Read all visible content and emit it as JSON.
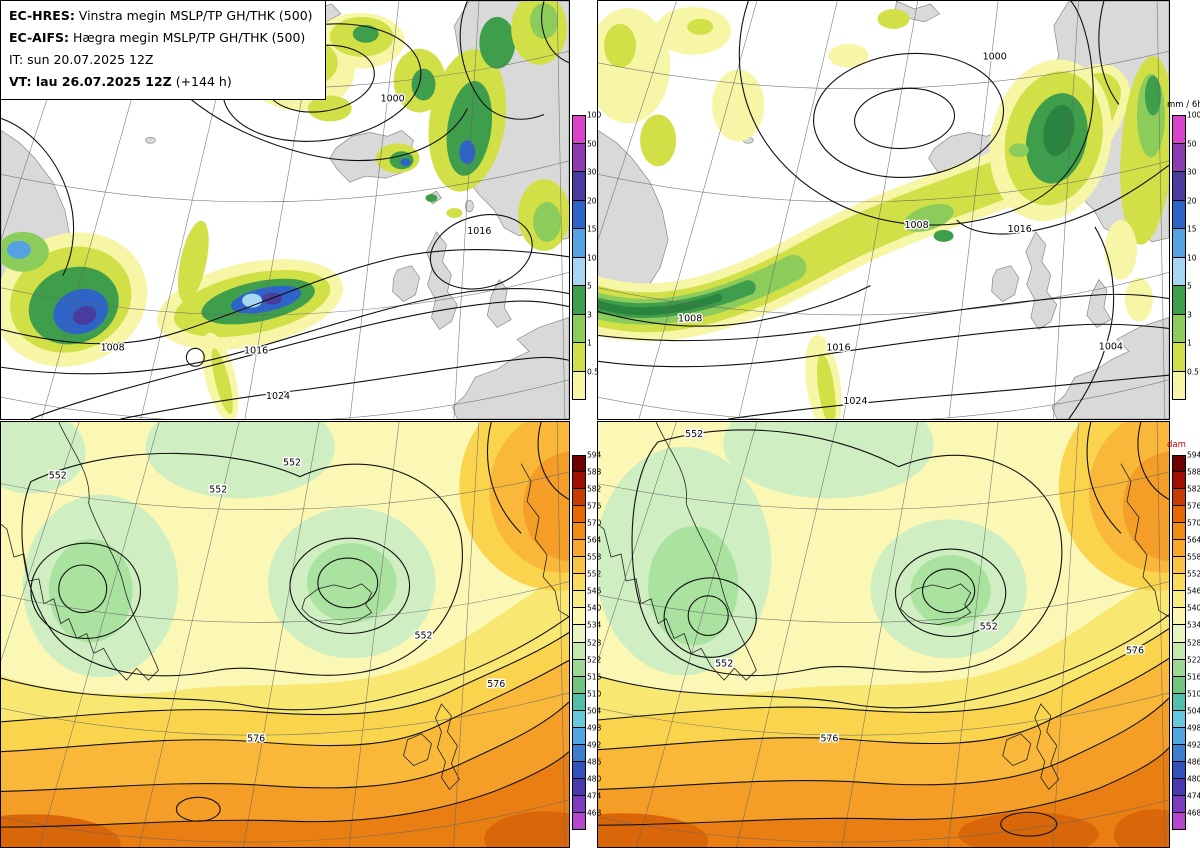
{
  "info_box": {
    "model_left_label": "EC-HRES:",
    "model_left_text": " Vinstra megin MSLP/TP GH/THK (500)",
    "model_right_label": "EC-AIFS:",
    "model_right_text": " Hægra megin MSLP/TP GH/THK (500)",
    "init_time": "IT: sun 20.07.2025 12Z",
    "valid_time": "VT: lau 26.07.2025 12Z",
    "valid_offset": " (+144 h)"
  },
  "colorbars": {
    "precip": {
      "unit": "mm / 6h",
      "levels": [
        "100",
        "50",
        "30",
        "20",
        "15",
        "10",
        "5",
        "3",
        "1",
        "0.5"
      ],
      "colors": [
        "#d944c8",
        "#8c3cb0",
        "#4a3c9e",
        "#2e63c8",
        "#54a2e2",
        "#a6d6f2",
        "#3f9e4b",
        "#8ccc5a",
        "#d2e048",
        "#f6f6a6"
      ]
    },
    "height": {
      "unit": "dam",
      "unit_color": "#c00000",
      "levels": [
        "594",
        "588",
        "582",
        "576",
        "570",
        "564",
        "558",
        "552",
        "546",
        "540",
        "534",
        "528",
        "522",
        "516",
        "510",
        "504",
        "498",
        "492",
        "486",
        "480",
        "474",
        "468"
      ],
      "colors": [
        "#6f0000",
        "#a00f00",
        "#c83c00",
        "#e46a00",
        "#f18c15",
        "#f8a82b",
        "#fbc343",
        "#f9dc5c",
        "#f9ec85",
        "#fbf6b0",
        "#e8f4c0",
        "#c5e8ad",
        "#9cd894",
        "#70c47e",
        "#52c0a8",
        "#66c8dc",
        "#4fa6e0",
        "#3b7ecf",
        "#3353bc",
        "#4a3ab0",
        "#7c3cc0",
        "#b646cc"
      ]
    }
  },
  "panels": {
    "top_left": {
      "contour_labels": [
        "1000",
        "1016",
        "1008",
        "1016",
        "1024"
      ]
    },
    "top_right": {
      "contour_labels": [
        "1000",
        "1008",
        "1016",
        "1008",
        "1016",
        "1024",
        "1004"
      ]
    },
    "bottom_left": {
      "contour_labels": [
        "552",
        "552",
        "552",
        "552",
        "576",
        "576"
      ]
    },
    "bottom_right": {
      "contour_labels": [
        "552",
        "552",
        "552",
        "576",
        "576"
      ]
    }
  }
}
